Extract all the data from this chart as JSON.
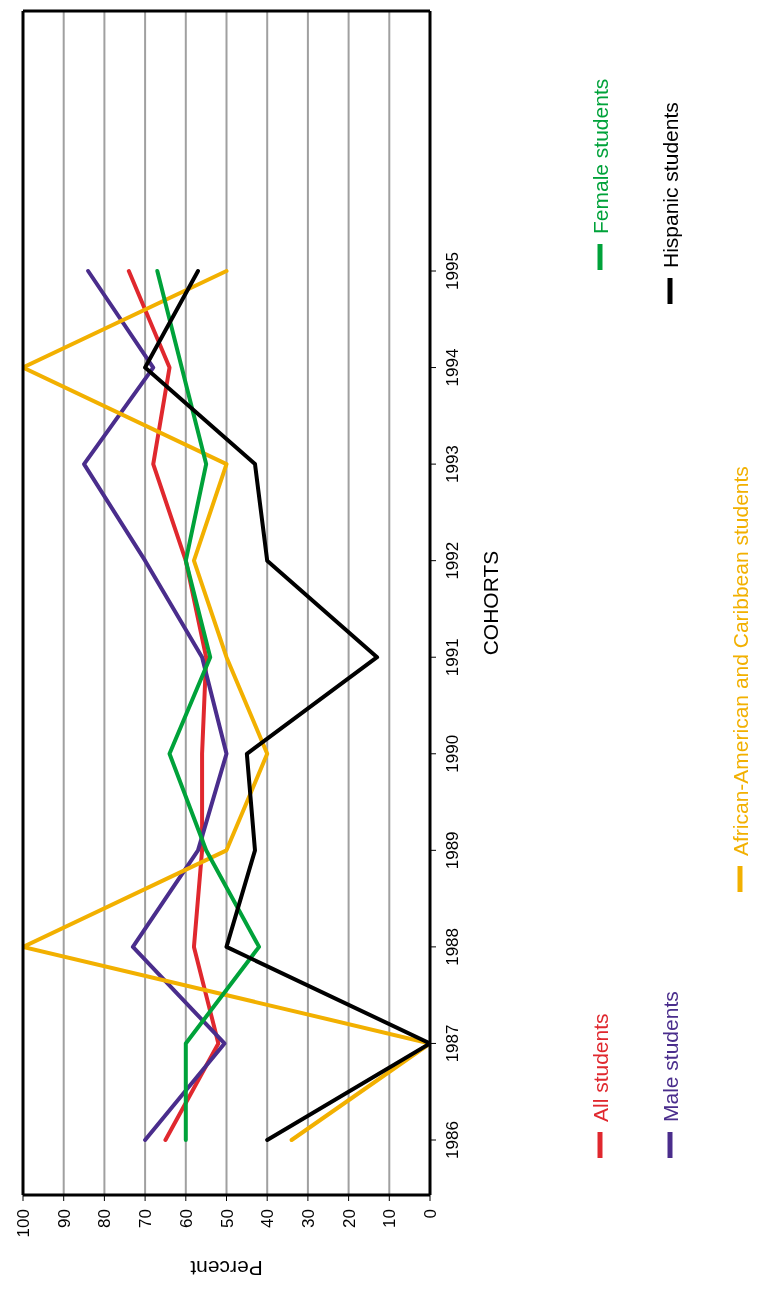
{
  "chart_data": {
    "type": "line",
    "orientation": "horizontal",
    "xlabel": "Percent",
    "ylabel": "COHORTS",
    "categories": [
      "1995",
      "1994",
      "1993",
      "1992",
      "1991",
      "1990",
      "1989",
      "1988",
      "1987",
      "1986"
    ],
    "series": [
      {
        "name": "All students",
        "color": "#e0282e",
        "values": [
          74,
          64,
          68,
          60,
          55,
          56,
          56,
          58,
          52,
          65
        ]
      },
      {
        "name": "Male students",
        "color": "#4a2d8c",
        "values": [
          84,
          68,
          85,
          70,
          56,
          50,
          57,
          73,
          50.5,
          70
        ]
      },
      {
        "name": "African-American and Caribbean students",
        "color": "#f2b000",
        "values": [
          50,
          100,
          50,
          58,
          50,
          40,
          50,
          100,
          0,
          34
        ]
      },
      {
        "name": "Female students",
        "color": "#00a23a",
        "values": [
          67,
          61,
          55,
          60,
          54,
          64,
          55,
          42,
          60,
          60
        ]
      },
      {
        "name": "Hispanic students",
        "color": "#000000",
        "values": [
          57,
          70,
          43,
          40,
          13,
          45,
          43,
          50,
          0,
          40
        ]
      }
    ],
    "xlim": [
      100,
      0
    ],
    "xticks": [
      0,
      10,
      20,
      30,
      40,
      50,
      60,
      70,
      80,
      90,
      100
    ],
    "grid": "x",
    "legend": "right"
  }
}
